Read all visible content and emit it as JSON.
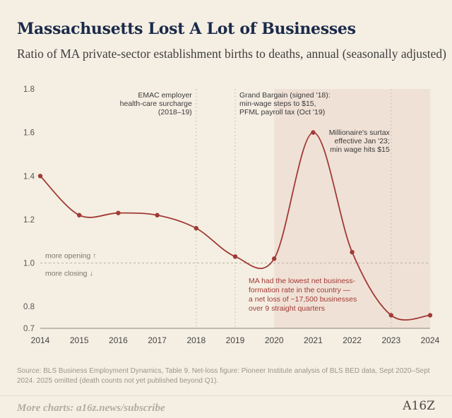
{
  "header": {
    "title": "Massachusetts Lost A Lot of Businesses",
    "subtitle": "Ratio of MA private-sector establishment births to deaths, annual (seasonally adjusted)"
  },
  "chart_data": {
    "type": "line",
    "x": [
      2014,
      2015,
      2016,
      2017,
      2018,
      2019,
      2020,
      2021,
      2022,
      2023,
      2024
    ],
    "series": [
      {
        "values": [
          1.4,
          1.22,
          1.23,
          1.22,
          1.16,
          1.03,
          1.02,
          1.6,
          1.05,
          0.76,
          0.76
        ]
      }
    ],
    "xlim": [
      2014,
      2024
    ],
    "ylim": [
      0.7,
      1.8
    ],
    "y_ticks": [
      "1.8",
      "1.6",
      "1.4",
      "1.2",
      "1.0",
      "0.8",
      "0.7"
    ],
    "x_ticks": [
      "2014",
      "2015",
      "2016",
      "2017",
      "2018",
      "2019",
      "2020",
      "2021",
      "2022",
      "2023",
      "2024"
    ],
    "reference_line": {
      "y": 1.0,
      "above_label": "more opening ↑",
      "below_label": "more closing ↓"
    },
    "shaded_region": {
      "from": 2020,
      "to": 2024
    },
    "events": [
      {
        "x": 2018,
        "lines": [
          "EMAC employer",
          "health-care surcharge",
          "(2018–19)"
        ]
      },
      {
        "x": 2019,
        "lines": [
          "Grand Bargain (signed '18):",
          "min-wage steps to $15,",
          "PFML payroll tax (Oct '19)"
        ]
      },
      {
        "x": 2023,
        "lines": [
          "Millionaire's surtax",
          "effective Jan '23;",
          "min wage hits $15"
        ]
      }
    ],
    "callout": [
      "MA had the lowest net business-",
      "formation rate in the country —",
      "a net loss of ~17,500 businesses",
      "over 9 straight quarters"
    ],
    "colors": {
      "line": "#a13a35",
      "shade": "#f0e1d6",
      "callout": "#a13a35",
      "grid": "#c9c0b0",
      "reference": "#b8b0a2"
    },
    "grid": false
  },
  "source": "Source: BLS Business Employment Dynamics, Table 9. Net-loss figure: Pioneer Institute analysis of BLS BED data, Sept 2020–Sept 2024. 2025 omitted (death counts not yet published beyond Q1).",
  "footer": {
    "link": "More charts: a16z.news/subscribe",
    "logo": "A16Z"
  }
}
